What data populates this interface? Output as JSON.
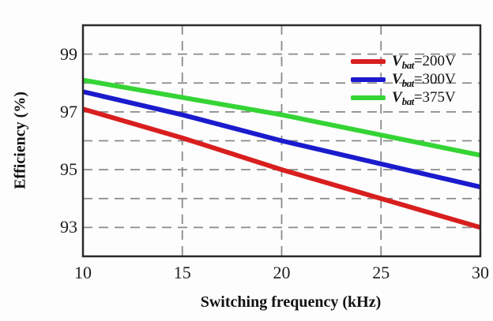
{
  "figure": {
    "background": "#fdfdfd",
    "axis_color": "#2b2b2b",
    "grid_color": "#8a8a8a",
    "text_color": "#1b1b1b"
  },
  "chart_data": {
    "type": "line",
    "title": "",
    "xlabel": "Switching frequency (kHz)",
    "ylabel": "Efficiency (%)",
    "x": [
      10,
      15,
      20,
      25,
      30
    ],
    "xlim": [
      10,
      30
    ],
    "ylim": [
      92,
      100
    ],
    "x_ticks": [
      10,
      15,
      20,
      25,
      30
    ],
    "y_ticks": [
      93,
      95,
      97,
      99
    ],
    "grid": {
      "style": "dashed",
      "x_values": [
        15,
        20,
        25
      ],
      "y_values": [
        93,
        94,
        95,
        96,
        97,
        98,
        99
      ]
    },
    "legend_position": "top-right",
    "series": [
      {
        "name": "Vbat=200V",
        "color": "#d81e1e",
        "values": [
          97.1,
          96.1,
          95.0,
          94.0,
          93.0
        ],
        "legend": {
          "v": "V",
          "sub": "bat",
          "rest": "=200V"
        }
      },
      {
        "name": "Vbat=300V",
        "color": "#1b1bcd",
        "values": [
          97.7,
          96.9,
          96.0,
          95.2,
          94.4
        ],
        "legend": {
          "v": "V",
          "sub": "bat",
          "rest": "=300V"
        }
      },
      {
        "name": "Vbat=375V",
        "color": "#35d435",
        "values": [
          98.1,
          97.5,
          96.9,
          96.2,
          95.5
        ],
        "legend": {
          "v": "V",
          "sub": "bat",
          "rest": "=375V"
        }
      }
    ]
  }
}
